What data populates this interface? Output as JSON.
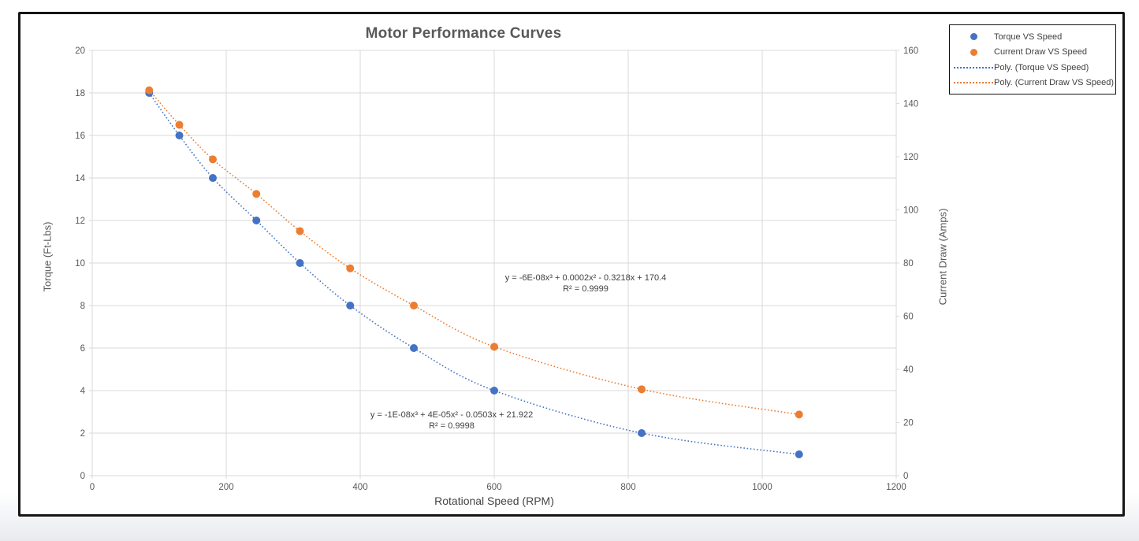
{
  "chart_data": {
    "type": "scatter",
    "title": "Motor Performance Curves",
    "xlabel": "Rotational Speed (RPM)",
    "ylabel_left": "Torque (Ft-Lbs)",
    "ylabel_right": "Current Draw (Amps)",
    "xlim": [
      0,
      1200
    ],
    "ylim_left": [
      0,
      20
    ],
    "ylim_right": [
      0,
      160
    ],
    "x_ticks": [
      0,
      200,
      400,
      600,
      800,
      1000,
      1200
    ],
    "y_ticks_left": [
      0,
      2,
      4,
      6,
      8,
      10,
      12,
      14,
      16,
      18,
      20
    ],
    "y_ticks_right": [
      0,
      20,
      40,
      60,
      80,
      100,
      120,
      140,
      160
    ],
    "grid": "on",
    "legend_position": "top-right",
    "x": [
      85,
      130,
      180,
      245,
      310,
      385,
      480,
      600,
      820,
      1055
    ],
    "series": [
      {
        "name": "Torque VS Speed",
        "axis": "left",
        "color": "#4472C4",
        "values": [
          18,
          16,
          14,
          12,
          10,
          8,
          6,
          4,
          2,
          1
        ]
      },
      {
        "name": "Current Draw VS Speed",
        "axis": "right",
        "color": "#ED7D31",
        "values": [
          145,
          132,
          119,
          106,
          92,
          78,
          64,
          48.5,
          32.5,
          23
        ]
      }
    ],
    "trendlines": [
      {
        "name": "Poly. (Torque VS Speed)",
        "series": 0,
        "color": "#4472C4",
        "style": "dotted",
        "equation": "y = -1E-08x³ + 4E-05x² - 0.0503x + 21.922",
        "r2": "R² = 0.9998"
      },
      {
        "name": "Poly. (Current Draw VS Speed)",
        "series": 1,
        "color": "#ED7D31",
        "style": "dotted",
        "equation": "y = -6E-08x³ + 0.0002x² - 0.3218x + 170.4",
        "r2": "R² = 0.9999"
      }
    ],
    "legend": {
      "entries": [
        {
          "label": "Torque VS Speed",
          "marker": "dot"
        },
        {
          "label": "Current Draw VS Speed",
          "marker": "dot"
        },
        {
          "label": "Poly. (Torque VS Speed)",
          "marker": "dotted-line"
        },
        {
          "label": "Poly. (Current Draw VS Speed)",
          "marker": "dotted-line"
        }
      ]
    }
  },
  "annotations": {
    "current_draw": {
      "equation": "y = -6E-08x³ + 0.0002x² - 0.3218x + 170.4",
      "r2": "R² = 0.9999"
    },
    "torque": {
      "equation": "y = -1E-08x³ + 4E-05x² - 0.0503x + 21.922",
      "r2": "R² = 0.9998"
    }
  },
  "colors": {
    "torque_series": "#4472C4",
    "current_series": "#ED7D31",
    "gridline": "#d9d9d9",
    "text_gray": "#595959"
  }
}
